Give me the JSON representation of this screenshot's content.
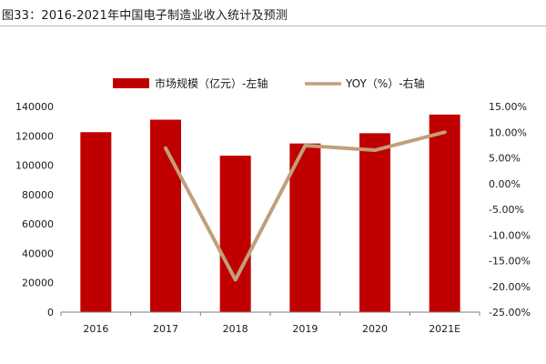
{
  "page": {
    "title": "图33：2016-2021年中国电子制造业收入统计及预测"
  },
  "chart_data": {
    "type": "bar",
    "categories": [
      "2016",
      "2017",
      "2018",
      "2019",
      "2020",
      "2021E"
    ],
    "series": [
      {
        "name": "市场规模（亿元）-左轴",
        "type": "bar",
        "axis": "left",
        "values": [
          122500,
          131000,
          106500,
          114800,
          121800,
          134500
        ],
        "color": "#c00000"
      },
      {
        "name": "YOY（%）-右轴",
        "type": "line",
        "axis": "right",
        "values": [
          null,
          6.9,
          -18.7,
          7.4,
          6.5,
          10.0
        ],
        "color": "#c0a07a"
      }
    ],
    "left_axis": {
      "ylim": [
        0,
        140000
      ],
      "ticks": [
        "0",
        "20000",
        "40000",
        "60000",
        "80000",
        "100000",
        "120000",
        "140000"
      ]
    },
    "right_axis": {
      "ylim": [
        -25,
        15
      ],
      "ticks": [
        "-25.00%",
        "-20.00%",
        "-15.00%",
        "-10.00%",
        "-5.00%",
        "0.00%",
        "5.00%",
        "10.00%",
        "15.00%"
      ]
    },
    "legend_position": "top",
    "grid": false
  }
}
